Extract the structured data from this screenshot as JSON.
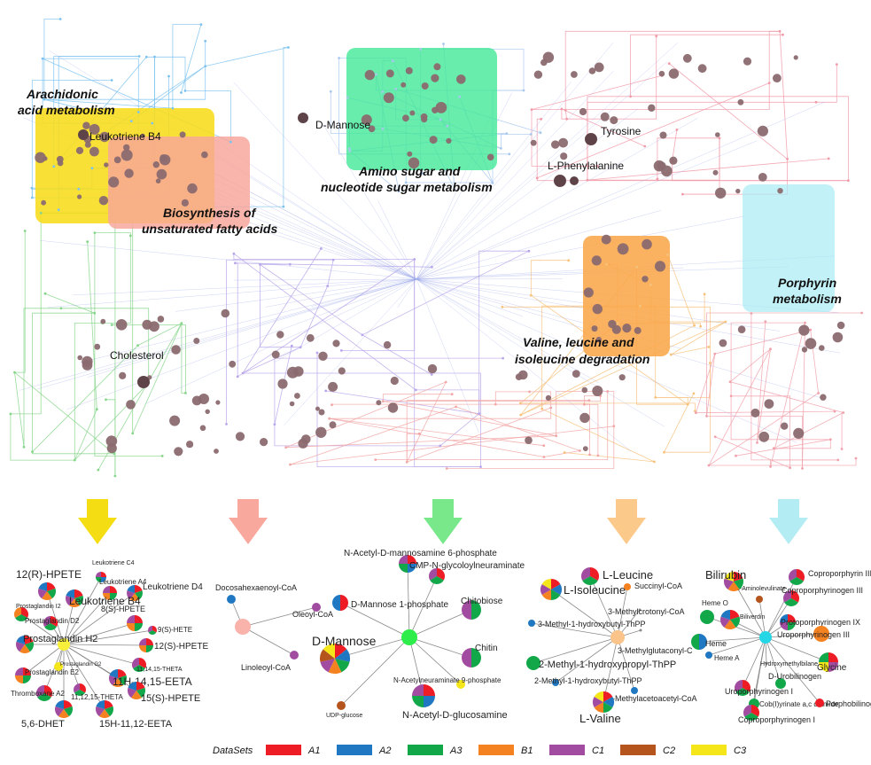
{
  "colors": {
    "A1": "#ee1c25",
    "A2": "#1f78c1",
    "A3": "#12a84a",
    "B1": "#f58220",
    "C1": "#a14ca0",
    "C2": "#b5541c",
    "C3": "#f5e61a"
  },
  "pathways": [
    {
      "label": [
        "Arachidonic",
        "acid metabolism"
      ],
      "fill": "#f7dc1a"
    },
    {
      "label": [
        "Biosynthesis of",
        "unsaturated fatty acids"
      ],
      "fill": "#f8a59a"
    },
    {
      "label": [
        "Amino sugar and",
        "nucleotide sugar metabolism"
      ],
      "fill": "#3fe896"
    },
    {
      "label": [
        "Valine, leucine and",
        "isoleucine degradation"
      ],
      "fill": "#f9a74a"
    },
    {
      "label": [
        "Porphyrin",
        "metabolism"
      ],
      "fill": "#a8ebf4"
    }
  ],
  "map_labels": [
    "Leukotriene B4",
    "D-Mannose",
    "Tyrosine",
    "L-Phenylalanine",
    "Cholesterol"
  ],
  "arrows": [
    "#f5dd14",
    "#f8a89d",
    "#78e88a",
    "#fbc98a",
    "#b4ecf4"
  ],
  "subnetworks": [
    {
      "hub": "#f7ef3a",
      "nodes": [
        {
          "label": "12(R)-HPETE",
          "c": [
            "A1",
            "A3",
            "B1",
            "C1",
            "A2"
          ]
        },
        {
          "label": "Leukotriene C4",
          "c": [
            "A1",
            "A2",
            "A3",
            "C1"
          ]
        },
        {
          "label": "Leukotriene A4",
          "c": [
            "A1",
            "A3",
            "B1",
            "C1"
          ]
        },
        {
          "label": "Leukotriene D4",
          "c": [
            "A1",
            "A3",
            "B1",
            "C1",
            "A2"
          ]
        },
        {
          "label": "Leukotriene B4",
          "c": [
            "A1",
            "A3",
            "B1",
            "C1",
            "A2"
          ]
        },
        {
          "label": "Prostaglandin I2",
          "c": [
            "A1",
            "A3",
            "B1"
          ]
        },
        {
          "label": "Prostaglandin D2",
          "c": [
            "A1",
            "A3",
            "C1"
          ]
        },
        {
          "label": "8(S)-HPETE",
          "c": [
            "A1",
            "A3",
            "B1",
            "C1"
          ]
        },
        {
          "label": "9(S)-HETE",
          "c": [
            "A1",
            "A3",
            "C1"
          ]
        },
        {
          "label": "Prostaglandin H2",
          "c": [
            "A1",
            "A3",
            "B1",
            "C1",
            "A2"
          ]
        },
        {
          "label": "12(S)-HPETE",
          "c": [
            "A1",
            "A3",
            "B1",
            "C1"
          ]
        },
        {
          "label": "Prostaglandin G2",
          "c": [
            "C3"
          ]
        },
        {
          "label": "11,14,15-THETA",
          "c": [
            "A1",
            "A3",
            "C1"
          ]
        },
        {
          "label": "Prostaglandin E2",
          "c": [
            "A1",
            "A3",
            "B1",
            "C1"
          ]
        },
        {
          "label": "11H-14,15-EETA",
          "c": [
            "A1",
            "A3",
            "B1",
            "C1",
            "A2"
          ]
        },
        {
          "label": "Thromboxane A2",
          "c": [
            "A1",
            "A3",
            "C1"
          ]
        },
        {
          "label": "11,12,15-THETA",
          "c": [
            "A1",
            "A3",
            "C1"
          ]
        },
        {
          "label": "15(S)-HPETE",
          "c": [
            "A1",
            "A3",
            "B1",
            "C1",
            "A2"
          ]
        },
        {
          "label": "5,6-DHET",
          "c": [
            "A1",
            "A3",
            "B1",
            "C1",
            "A2"
          ]
        },
        {
          "label": "15H-11,12-EETA",
          "c": [
            "A1",
            "A3",
            "B1",
            "C1",
            "A2"
          ]
        }
      ]
    },
    {
      "hub": "#f9b3aa",
      "nodes": [
        {
          "label": "Docosahexaenoyl-CoA",
          "c": [
            "A2"
          ]
        },
        {
          "label": "Oleoyl-CoA",
          "c": [
            "C1"
          ]
        },
        {
          "label": "Linoleoyl-CoA",
          "c": [
            "C1"
          ]
        }
      ]
    },
    {
      "hub": "#2ded4a",
      "nodes": [
        {
          "label": "N-Acetyl-D-mannosamine 6-phosphate",
          "c": [
            "A1",
            "A2",
            "A3",
            "C1"
          ]
        },
        {
          "label": "CMP-N-glycoloylneuraminate",
          "c": [
            "A1",
            "A3",
            "C1"
          ]
        },
        {
          "label": "D-Mannose 1-phosphate",
          "c": [
            "A1",
            "A2"
          ]
        },
        {
          "label": "Chitobiose",
          "c": [
            "A3",
            "C1"
          ]
        },
        {
          "label": "D-Mannose",
          "c": [
            "A1",
            "A2",
            "A3",
            "B1",
            "C1",
            "C2",
            "C3"
          ]
        },
        {
          "label": "Chitin",
          "c": [
            "A3",
            "C1"
          ]
        },
        {
          "label": "N-Acetylneuraminate 9-phosphate",
          "c": [
            "C3"
          ]
        },
        {
          "label": "UDP-glucose",
          "c": [
            "C2"
          ]
        },
        {
          "label": "N-Acetyl-D-glucosamine",
          "c": [
            "A1",
            "A2",
            "A3",
            "C1"
          ]
        }
      ]
    },
    {
      "hub": "#fbc48a",
      "nodes": [
        {
          "label": "L-Leucine",
          "c": [
            "A1",
            "A3",
            "C1"
          ]
        },
        {
          "label": "L-Isoleucine",
          "c": [
            "A1",
            "A2",
            "A3",
            "B1",
            "C1",
            "C3"
          ]
        },
        {
          "label": "Succinyl-CoA",
          "c": [
            "B1"
          ]
        },
        {
          "label": "3-Methylcrotonyl-CoA",
          "c": []
        },
        {
          "label": "3-Methyl-1-hydroxybutyl-ThPP",
          "c": [
            "A2"
          ]
        },
        {
          "label": "3-Methylglutaconyl-C",
          "c": []
        },
        {
          "label": "2-Methyl-1-hydroxypropyl-ThPP",
          "c": [
            "A3"
          ]
        },
        {
          "label": "2-Methyl-1-hydroxybutyl-ThPP",
          "c": [
            "A2"
          ]
        },
        {
          "label": "2-Methylacetoacetyl-CoA",
          "c": [
            "A2"
          ]
        },
        {
          "label": "L-Valine",
          "c": [
            "A1",
            "A2",
            "A3",
            "B1",
            "C1",
            "C3"
          ]
        }
      ]
    },
    {
      "hub": "#25d6e6",
      "nodes": [
        {
          "label": "5-Aminolevulinate",
          "c": [
            "C2"
          ]
        },
        {
          "label": "Bilirubin",
          "c": [
            "A1",
            "A3",
            "B1",
            "C1",
            "C3"
          ]
        },
        {
          "label": "Coproporphyrin III",
          "c": [
            "A1",
            "A3",
            "C1"
          ]
        },
        {
          "label": "Coproporphyrinogen III",
          "c": [
            "A1",
            "A3",
            "C1"
          ]
        },
        {
          "label": "Heme O",
          "c": [
            "A3"
          ]
        },
        {
          "label": "Biliverdin",
          "c": [
            "A1",
            "A3",
            "B1",
            "C1",
            "A2"
          ]
        },
        {
          "label": "Protoporphyrinogen IX",
          "c": [
            "A1",
            "A3",
            "C1",
            "A2"
          ]
        },
        {
          "label": "Uroporphyrinogen III",
          "c": [
            "B1"
          ]
        },
        {
          "label": "Heme",
          "c": [
            "A2",
            "A3"
          ]
        },
        {
          "label": "Glycine",
          "c": [
            "A1",
            "C1",
            "C3",
            "A3"
          ]
        },
        {
          "label": "Heme A",
          "c": [
            "A2"
          ]
        },
        {
          "label": "Hydroxymethylbilane",
          "c": []
        },
        {
          "label": "D-Urobilinogen",
          "c": [
            "A3"
          ]
        },
        {
          "label": "Cob(I)yrinate a,c diamide",
          "c": [
            "A3"
          ]
        },
        {
          "label": "Uroporphyrinogen I",
          "c": [
            "A1",
            "A3",
            "C1"
          ]
        },
        {
          "label": "Porphobilinogen",
          "c": [
            "A1"
          ]
        },
        {
          "label": "Coproporphyrinogen I",
          "c": [
            "A1",
            "A3",
            "C1"
          ]
        }
      ]
    }
  ],
  "legend": {
    "title": "DataSets",
    "items": [
      {
        "label": "A1",
        "key": "A1"
      },
      {
        "label": "A2",
        "key": "A2"
      },
      {
        "label": "A3",
        "key": "A3"
      },
      {
        "label": "B1",
        "key": "B1"
      },
      {
        "label": "C1",
        "key": "C1"
      },
      {
        "label": "C2",
        "key": "C2"
      },
      {
        "label": "C3",
        "key": "C3"
      }
    ]
  }
}
